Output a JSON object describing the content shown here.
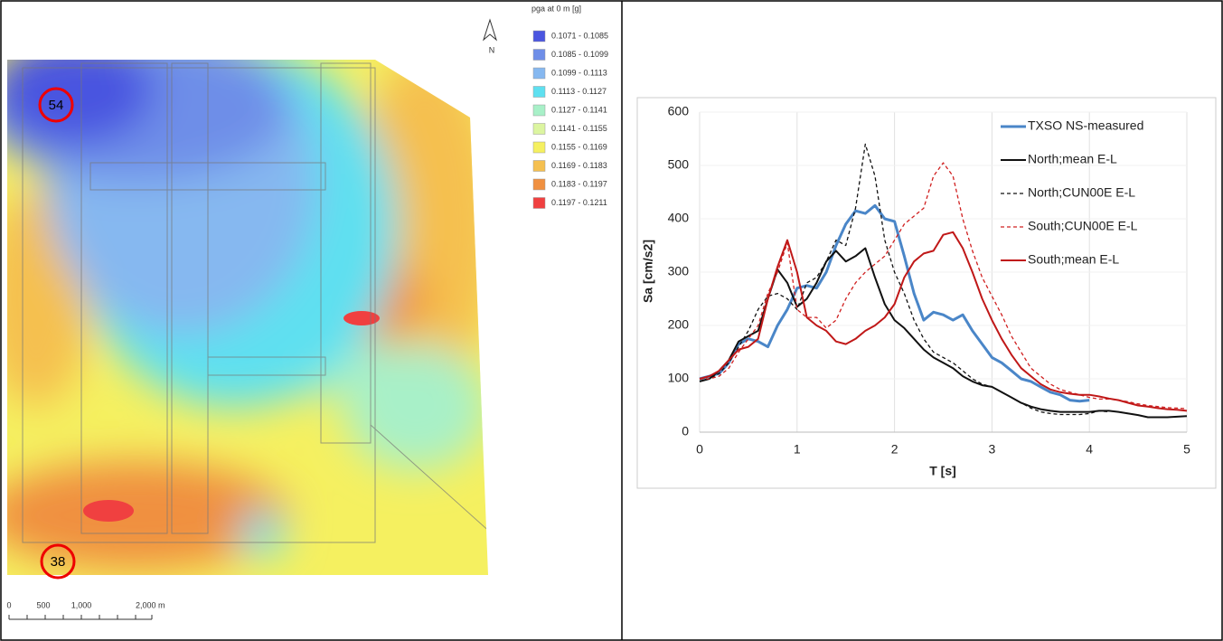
{
  "map": {
    "legend": {
      "title": "pga at 0 m [g]",
      "items": [
        {
          "label": "0.1071 - 0.1085",
          "color": "#4a55e0"
        },
        {
          "label": "0.1085 - 0.1099",
          "color": "#6e8ee8"
        },
        {
          "label": "0.1099 - 0.1113",
          "color": "#86b8f0"
        },
        {
          "label": "0.1113 - 0.1127",
          "color": "#5ee0f0"
        },
        {
          "label": "0.1127 - 0.1141",
          "color": "#a8f0c8"
        },
        {
          "label": "0.1141 - 0.1155",
          "color": "#dcf5a0"
        },
        {
          "label": "0.1155 - 0.1169",
          "color": "#f5f060"
        },
        {
          "label": "0.1169 - 0.1183",
          "color": "#f5c050"
        },
        {
          "label": "0.1183 - 0.1197",
          "color": "#f09040"
        },
        {
          "label": "0.1197 - 0.1211",
          "color": "#f04040"
        }
      ]
    },
    "north": "N",
    "stations": [
      "54",
      "38"
    ],
    "scale": [
      "0",
      "500",
      "1,000",
      "2,000 m"
    ]
  },
  "chart_data": {
    "type": "line",
    "xlabel": "T [s]",
    "ylabel": "Sa [cm/s2]",
    "xlim": [
      0,
      5
    ],
    "ylim": [
      0,
      600
    ],
    "xticks": [
      0,
      1,
      2,
      3,
      4,
      5
    ],
    "yticks": [
      0,
      100,
      200,
      300,
      400,
      500,
      600
    ],
    "grid": true,
    "x": [
      0,
      0.1,
      0.2,
      0.3,
      0.4,
      0.5,
      0.6,
      0.7,
      0.8,
      0.9,
      1,
      1.1,
      1.2,
      1.3,
      1.4,
      1.5,
      1.6,
      1.7,
      1.8,
      1.9,
      2,
      2.1,
      2.2,
      2.3,
      2.4,
      2.5,
      2.6,
      2.7,
      2.8,
      2.9,
      3,
      3.1,
      3.2,
      3.3,
      3.4,
      3.5,
      3.6,
      3.7,
      3.8,
      3.9,
      4,
      4.1,
      4.2,
      4.3,
      4.4,
      4.5,
      4.6,
      4.7,
      4.8,
      4.9,
      5
    ],
    "series": [
      {
        "name": "TXSO NS-measured",
        "color": "#4a86c8",
        "dash": "solid",
        "width": 3,
        "values": [
          100,
          105,
          110,
          130,
          165,
          175,
          170,
          160,
          200,
          230,
          270,
          275,
          270,
          300,
          350,
          390,
          415,
          410,
          425,
          400,
          395,
          330,
          260,
          210,
          225,
          220,
          210,
          220,
          190,
          165,
          140,
          130,
          115,
          100,
          95,
          85,
          75,
          70,
          60,
          58,
          60,
          null,
          null,
          null,
          null,
          null,
          null,
          null,
          null,
          null,
          null
        ]
      },
      {
        "name": "North;mean E-L",
        "color": "#111111",
        "dash": "solid",
        "width": 2,
        "values": [
          95,
          100,
          115,
          135,
          170,
          180,
          190,
          250,
          305,
          280,
          235,
          250,
          280,
          320,
          340,
          320,
          330,
          345,
          290,
          240,
          210,
          195,
          175,
          155,
          140,
          130,
          120,
          105,
          95,
          88,
          85,
          75,
          65,
          55,
          48,
          43,
          40,
          38,
          38,
          38,
          38,
          40,
          40,
          38,
          35,
          32,
          28,
          28,
          28,
          29,
          30
        ]
      },
      {
        "name": "North;CUN00E E-L",
        "color": "#111111",
        "dash": "dashed",
        "width": 1.3,
        "values": [
          95,
          100,
          110,
          130,
          160,
          190,
          230,
          255,
          260,
          250,
          230,
          280,
          290,
          320,
          360,
          350,
          420,
          540,
          480,
          360,
          300,
          260,
          210,
          175,
          150,
          140,
          130,
          115,
          100,
          90,
          85,
          75,
          65,
          55,
          45,
          38,
          35,
          33,
          33,
          33,
          35,
          40,
          38,
          null,
          null,
          null,
          null,
          null,
          null,
          null,
          null
        ]
      },
      {
        "name": "South;CUN00E E-L",
        "color": "#d02020",
        "dash": "dashed",
        "width": 1.3,
        "values": [
          100,
          100,
          105,
          120,
          150,
          175,
          200,
          260,
          300,
          355,
          230,
          215,
          215,
          195,
          210,
          250,
          280,
          300,
          315,
          330,
          360,
          390,
          405,
          420,
          480,
          505,
          480,
          400,
          340,
          290,
          255,
          220,
          180,
          150,
          120,
          105,
          90,
          80,
          75,
          70,
          65,
          62,
          62,
          60,
          57,
          53,
          50,
          48,
          46,
          45,
          44
        ]
      },
      {
        "name": "South;mean E-L",
        "color": "#c01818",
        "dash": "solid",
        "width": 2,
        "values": [
          100,
          105,
          115,
          135,
          155,
          160,
          175,
          250,
          310,
          360,
          300,
          215,
          200,
          190,
          170,
          165,
          175,
          190,
          200,
          215,
          240,
          290,
          320,
          335,
          340,
          370,
          375,
          345,
          300,
          250,
          210,
          175,
          145,
          120,
          105,
          90,
          80,
          75,
          72,
          70,
          70,
          67,
          63,
          60,
          55,
          50,
          48,
          45,
          43,
          42,
          40
        ]
      }
    ]
  }
}
